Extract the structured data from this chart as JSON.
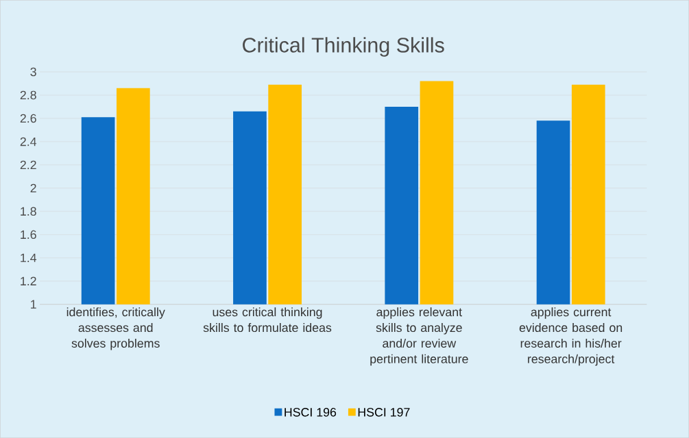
{
  "chart_data": {
    "type": "bar",
    "title": "Critical Thinking Skills",
    "categories": [
      "identifies, critically assesses and solves problems",
      "uses critical thinking skills to formulate ideas",
      "applies relevant skills to analyze and/or review pertinent literature",
      "applies current evidence based on research in his/her research/project"
    ],
    "series": [
      {
        "name": "HSCI 196",
        "color": "#0e6fc6",
        "values": [
          2.61,
          2.66,
          2.7,
          2.58
        ]
      },
      {
        "name": "HSCI 197",
        "color": "#ffc000",
        "values": [
          2.86,
          2.89,
          2.92,
          2.89
        ]
      }
    ],
    "ylim": [
      1,
      3
    ],
    "yticks": [
      1,
      1.2,
      1.4,
      1.6,
      1.8,
      2,
      2.2,
      2.4,
      2.6,
      2.8,
      3
    ],
    "grid": "y",
    "legend": "bottom"
  }
}
